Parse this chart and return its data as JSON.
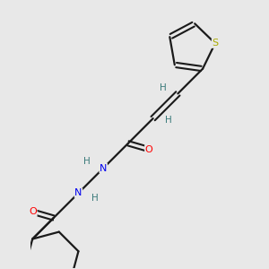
{
  "background_color": "#e8e8e8",
  "bond_color": "#1a1a1a",
  "atom_colors": {
    "S": "#aaaa00",
    "O": "#ff0000",
    "N": "#0000ee",
    "H": "#3a7a7a",
    "C": "#1a1a1a"
  },
  "figsize": [
    3.0,
    3.0
  ],
  "dpi": 100
}
